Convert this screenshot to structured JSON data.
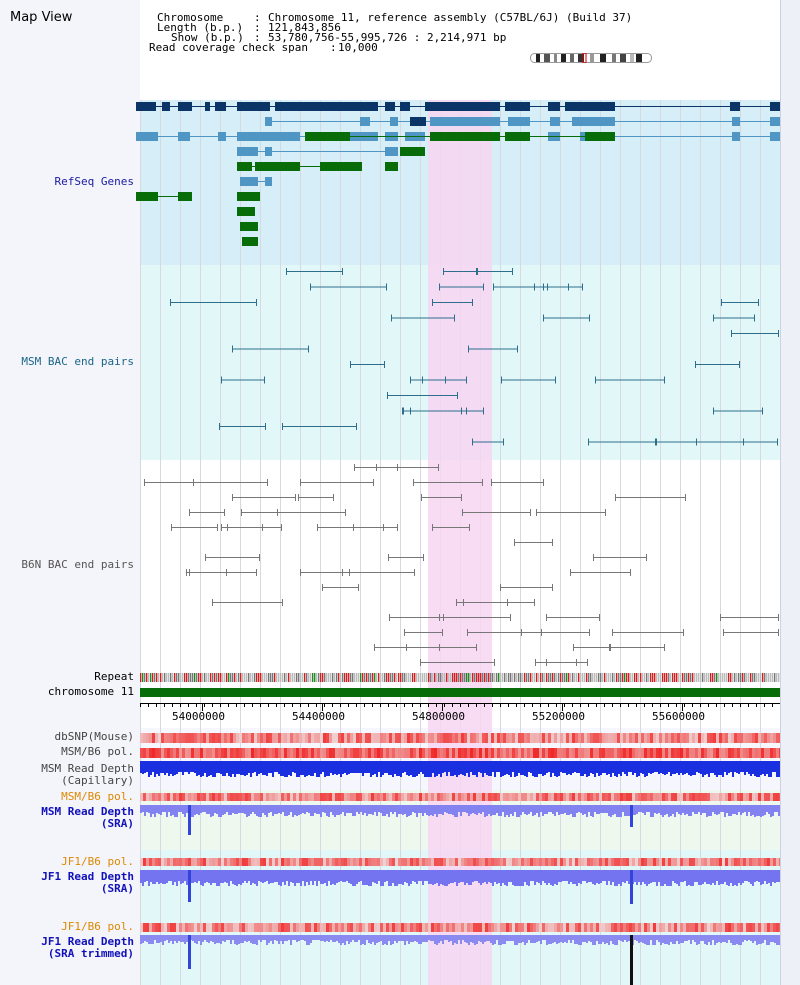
{
  "app": {
    "title": "Map View"
  },
  "header": {
    "chromosome_label": "Chromosome",
    "chromosome_value": "Chromosome 11, reference assembly (C57BL/6J) (Build 37)",
    "length_label": "Length (b.p.)",
    "length_value": "121,843,856",
    "show_label": "Show (b.p.)",
    "show_value": "53,780,756-55,995,726 : 2,214,971 bp",
    "coverage_label": "Read coverage check span",
    "coverage_value": "10,000"
  },
  "tracks": {
    "refseq": "RefSeq Genes",
    "msm_bac": "MSM BAC end pairs",
    "b6n_bac": "B6N BAC end pairs",
    "repeat": "Repeat",
    "chromosome": "chromosome 11",
    "dbsnp": "dbSNP(Mouse)",
    "msm_b6_pol_1": "MSM/B6 pol.",
    "msm_read_depth_cap_1": "MSM Read Depth",
    "msm_read_depth_cap_2": "(Capillary)",
    "msm_b6_pol_2": "MSM/B6 pol.",
    "msm_read_depth_sra_1": "MSM Read Depth",
    "msm_read_depth_sra_2": "(SRA)",
    "jf1_b6_pol_1": "JF1/B6 pol.",
    "jf1_read_depth_sra_1": "JF1 Read Depth",
    "jf1_read_depth_sra_2": "(SRA)",
    "jf1_b6_pol_2": "JF1/B6 pol.",
    "jf1_read_depth_trim_1": "JF1 Read Depth",
    "jf1_read_depth_trim_2": "(SRA trimmed)"
  },
  "axis": {
    "ticks": [
      "54000000",
      "54400000",
      "54800000",
      "55200000",
      "55600000"
    ]
  },
  "colors": {
    "gene_dark": "#0b3566",
    "gene_mid": "#4f96c4",
    "gene_green": "#086c08",
    "msm_line": "#2c6e8c",
    "b6n_line": "#777777",
    "highlight": "#f7d6f2",
    "label_blue": "#0000cc",
    "label_orange": "#dd8800",
    "label_teal": "#1a6688"
  }
}
